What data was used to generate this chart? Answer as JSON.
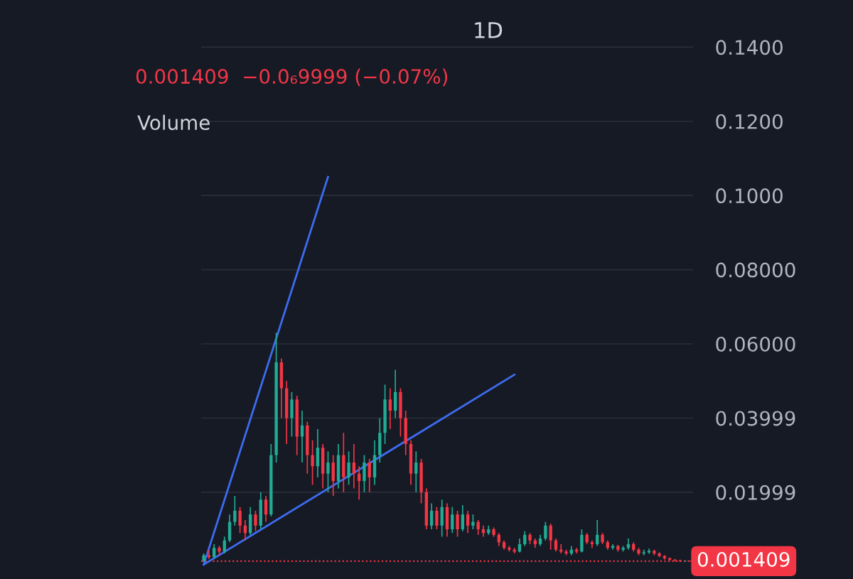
{
  "chart_data": {
    "type": "candlestick",
    "title": "1D",
    "annotations": [
      "0.001409  −0.0₆9999 (−0.07%)",
      "Volume"
    ],
    "categories": [
      null,
      null,
      null,
      null,
      null,
      null,
      null,
      null,
      null,
      null,
      null,
      null,
      null,
      null,
      null,
      null,
      null,
      null,
      null,
      null,
      null,
      null,
      null,
      null,
      null,
      null,
      null,
      null,
      null,
      null,
      null,
      null,
      null,
      null,
      null,
      null,
      null,
      null,
      null,
      null,
      null,
      null,
      null,
      null,
      null,
      null,
      null,
      null,
      null,
      null,
      null,
      null,
      null,
      null,
      null,
      null,
      null,
      null,
      null,
      null,
      null,
      null,
      null,
      null,
      null,
      null,
      null,
      null,
      null,
      null,
      null,
      null,
      null,
      null,
      null,
      null,
      null,
      null,
      null,
      null,
      null,
      null,
      null,
      null,
      null,
      null,
      null,
      null,
      null,
      null,
      null,
      null,
      null,
      null,
      null
    ],
    "series": [
      {
        "colors": [
          "#22ab94",
          "#f23645",
          "#22ab94",
          "#f23645",
          "#22ab94",
          "#22ab94",
          "#22ab94",
          "#f23645",
          "#f23645",
          "#22ab94",
          "#f23645",
          "#22ab94",
          "#f23645",
          "#22ab94",
          "#22ab94",
          "#f23645",
          "#f23645",
          "#22ab94",
          "#f23645",
          "#22ab94",
          "#f23645",
          "#f23645",
          "#22ab94",
          "#f23645",
          "#22ab94",
          "#f23645",
          "#22ab94",
          "#f23645",
          "#22ab94",
          "#f23645",
          "#f23645",
          "#22ab94",
          "#f23645",
          "#22ab94",
          "#22ab94",
          "#22ab94",
          "#f23645",
          "#22ab94",
          "#f23645",
          "#f23645",
          "#f23645",
          "#22ab94",
          "#f23645",
          "#f23645",
          "#22ab94",
          "#f23645",
          "#22ab94",
          "#f23645",
          "#22ab94",
          "#f23645",
          "#22ab94",
          "#f23645",
          "#22ab94",
          "#f23645",
          "#f23645",
          "#22ab94",
          "#f23645",
          "#f23645",
          "#f23645",
          "#f23645",
          "#f23645",
          "#22ab94",
          "#22ab94",
          "#f23645",
          "#f23645",
          "#22ab94",
          "#22ab94",
          "#f23645",
          "#f23645",
          "#f23645",
          "#f23645",
          "#22ab94",
          "#f23645",
          "#22ab94",
          "#f23645",
          "#f23645",
          "#22ab94",
          "#f23645",
          "#f23645",
          "#22ab94",
          "#f23645",
          "#22ab94",
          "#22ab94",
          "#f23645",
          "#f23645",
          "#22ab94",
          "#22ab94",
          "#f23645",
          "#f23645",
          "#f23645",
          "#f23645",
          "#f23645",
          "#f23645",
          "#22ab94",
          "#f23645"
        ],
        "ohlc": [
          [
            0.0015,
            0.0035,
            0.0012,
            0.003
          ],
          [
            0.003,
            0.0045,
            0.002,
            0.0025
          ],
          [
            0.0025,
            0.006,
            0.0022,
            0.005
          ],
          [
            0.005,
            0.0055,
            0.003,
            0.004
          ],
          [
            0.004,
            0.008,
            0.0035,
            0.007
          ],
          [
            0.007,
            0.014,
            0.0065,
            0.012
          ],
          [
            0.012,
            0.019,
            0.011,
            0.015
          ],
          [
            0.015,
            0.016,
            0.009,
            0.011
          ],
          [
            0.011,
            0.0125,
            0.007,
            0.009
          ],
          [
            0.009,
            0.016,
            0.0085,
            0.014
          ],
          [
            0.014,
            0.015,
            0.0095,
            0.011
          ],
          [
            0.011,
            0.02,
            0.01,
            0.018
          ],
          [
            0.018,
            0.019,
            0.012,
            0.014
          ],
          [
            0.014,
            0.033,
            0.0135,
            0.03
          ],
          [
            0.03,
            0.063,
            0.028,
            0.055
          ],
          [
            0.055,
            0.056,
            0.04,
            0.048
          ],
          [
            0.048,
            0.05,
            0.033,
            0.04
          ],
          [
            0.04,
            0.047,
            0.035,
            0.045
          ],
          [
            0.045,
            0.046,
            0.03,
            0.035
          ],
          [
            0.035,
            0.042,
            0.028,
            0.038
          ],
          [
            0.038,
            0.039,
            0.025,
            0.03
          ],
          [
            0.03,
            0.034,
            0.022,
            0.027
          ],
          [
            0.027,
            0.037,
            0.024,
            0.032
          ],
          [
            0.032,
            0.033,
            0.021,
            0.025
          ],
          [
            0.025,
            0.031,
            0.02,
            0.028
          ],
          [
            0.028,
            0.03,
            0.019,
            0.023
          ],
          [
            0.023,
            0.033,
            0.021,
            0.03
          ],
          [
            0.03,
            0.036,
            0.02,
            0.024
          ],
          [
            0.024,
            0.031,
            0.022,
            0.028
          ],
          [
            0.028,
            0.033,
            0.021,
            0.025
          ],
          [
            0.025,
            0.027,
            0.018,
            0.023
          ],
          [
            0.023,
            0.03,
            0.02,
            0.028
          ],
          [
            0.028,
            0.029,
            0.02,
            0.024
          ],
          [
            0.024,
            0.034,
            0.022,
            0.03
          ],
          [
            0.03,
            0.04,
            0.028,
            0.036
          ],
          [
            0.036,
            0.049,
            0.033,
            0.045
          ],
          [
            0.045,
            0.048,
            0.037,
            0.042
          ],
          [
            0.042,
            0.053,
            0.04,
            0.047
          ],
          [
            0.047,
            0.048,
            0.035,
            0.04
          ],
          [
            0.04,
            0.042,
            0.03,
            0.033
          ],
          [
            0.033,
            0.034,
            0.022,
            0.025
          ],
          [
            0.025,
            0.031,
            0.02,
            0.028
          ],
          [
            0.028,
            0.029,
            0.017,
            0.02
          ],
          [
            0.02,
            0.021,
            0.01,
            0.011
          ],
          [
            0.011,
            0.017,
            0.01,
            0.015
          ],
          [
            0.015,
            0.016,
            0.01,
            0.011
          ],
          [
            0.011,
            0.018,
            0.008,
            0.016
          ],
          [
            0.016,
            0.017,
            0.008,
            0.01
          ],
          [
            0.01,
            0.016,
            0.009,
            0.014
          ],
          [
            0.014,
            0.015,
            0.008,
            0.01
          ],
          [
            0.01,
            0.0165,
            0.0095,
            0.014
          ],
          [
            0.014,
            0.015,
            0.009,
            0.011
          ],
          [
            0.011,
            0.014,
            0.01,
            0.012
          ],
          [
            0.012,
            0.0125,
            0.0085,
            0.01
          ],
          [
            0.01,
            0.011,
            0.008,
            0.009
          ],
          [
            0.009,
            0.011,
            0.0085,
            0.01
          ],
          [
            0.01,
            0.0105,
            0.008,
            0.0085
          ],
          [
            0.0085,
            0.009,
            0.0055,
            0.0065
          ],
          [
            0.0065,
            0.007,
            0.0045,
            0.005
          ],
          [
            0.005,
            0.0055,
            0.004,
            0.0045
          ],
          [
            0.0045,
            0.005,
            0.0035,
            0.004
          ],
          [
            0.004,
            0.0075,
            0.0038,
            0.006
          ],
          [
            0.006,
            0.0095,
            0.0055,
            0.0085
          ],
          [
            0.0085,
            0.009,
            0.006,
            0.007
          ],
          [
            0.007,
            0.0075,
            0.005,
            0.006
          ],
          [
            0.006,
            0.0085,
            0.0055,
            0.0075
          ],
          [
            0.0075,
            0.012,
            0.007,
            0.011
          ],
          [
            0.011,
            0.0115,
            0.0045,
            0.007
          ],
          [
            0.007,
            0.0075,
            0.004,
            0.0045
          ],
          [
            0.0045,
            0.006,
            0.0035,
            0.004
          ],
          [
            0.004,
            0.0045,
            0.003,
            0.0035
          ],
          [
            0.0035,
            0.0055,
            0.003,
            0.0045
          ],
          [
            0.0045,
            0.005,
            0.0035,
            0.004
          ],
          [
            0.004,
            0.01,
            0.0038,
            0.0085
          ],
          [
            0.0085,
            0.009,
            0.006,
            0.0065
          ],
          [
            0.0065,
            0.007,
            0.005,
            0.006
          ],
          [
            0.006,
            0.0125,
            0.0055,
            0.0085
          ],
          [
            0.0085,
            0.009,
            0.006,
            0.0065
          ],
          [
            0.0065,
            0.007,
            0.0045,
            0.005
          ],
          [
            0.005,
            0.006,
            0.0045,
            0.0055
          ],
          [
            0.0055,
            0.0058,
            0.004,
            0.0045
          ],
          [
            0.0045,
            0.0055,
            0.004,
            0.005
          ],
          [
            0.005,
            0.0075,
            0.0045,
            0.006
          ],
          [
            0.006,
            0.0065,
            0.004,
            0.0045
          ],
          [
            0.0045,
            0.005,
            0.003,
            0.0035
          ],
          [
            0.0035,
            0.0045,
            0.003,
            0.0038
          ],
          [
            0.0038,
            0.0048,
            0.0034,
            0.0042
          ],
          [
            0.0042,
            0.0045,
            0.003,
            0.0035
          ],
          [
            0.0035,
            0.0038,
            0.0025,
            0.0028
          ],
          [
            0.0028,
            0.003,
            0.0018,
            0.0022
          ],
          [
            0.0022,
            0.0024,
            0.0015,
            0.0018
          ],
          [
            0.0018,
            0.002,
            0.0013,
            0.0016
          ],
          [
            0.0016,
            0.0018,
            0.0012,
            0.0014
          ],
          [
            0.0014,
            0.0016,
            0.0013,
            0.0015
          ],
          [
            0.0015,
            0.0016,
            0.0013,
            0.001409
          ]
        ]
      },
      {
        "type": "line",
        "color": "#3d6cf0",
        "values": [
          0.0005,
          null,
          null,
          null,
          null,
          null,
          null,
          null,
          null,
          null,
          null,
          null,
          null,
          null,
          null,
          null,
          null,
          null,
          null,
          null,
          null,
          null,
          null,
          null,
          0.105,
          null,
          null,
          null,
          null,
          null,
          null,
          null,
          null,
          null,
          null,
          null,
          null,
          null,
          null,
          null,
          null,
          null,
          null,
          null,
          null,
          null,
          null,
          null,
          null,
          null,
          null,
          null,
          null,
          null,
          null,
          null,
          null,
          null,
          null,
          null,
          null,
          null,
          null,
          null,
          null,
          null,
          null,
          null,
          null,
          null,
          null,
          null,
          null,
          null,
          null,
          null,
          null,
          null,
          null,
          null,
          null,
          null,
          null,
          null,
          null,
          null,
          null,
          null,
          null,
          null,
          null,
          null,
          null,
          null,
          null
        ]
      },
      {
        "type": "line",
        "color": "#3d6cf0",
        "values": [
          0.0005,
          null,
          null,
          null,
          null,
          null,
          null,
          null,
          null,
          null,
          null,
          null,
          null,
          null,
          null,
          null,
          null,
          null,
          null,
          null,
          null,
          null,
          null,
          null,
          null,
          null,
          null,
          null,
          null,
          null,
          null,
          null,
          null,
          null,
          null,
          null,
          null,
          null,
          null,
          null,
          null,
          null,
          null,
          null,
          null,
          null,
          null,
          null,
          null,
          null,
          null,
          null,
          null,
          null,
          null,
          null,
          null,
          null,
          null,
          null,
          0.0517,
          null,
          null,
          null,
          null,
          null,
          null,
          null,
          null,
          null,
          null,
          null,
          null,
          null,
          null,
          null,
          null,
          null,
          null,
          null,
          null,
          null,
          null,
          null,
          null,
          null,
          null,
          null,
          null,
          null,
          null,
          null,
          null,
          null,
          null
        ]
      }
    ],
    "ylim": [
      -0.0034,
      0.1527
    ],
    "yticks": [
      0.01999,
      0.03999,
      {
        "value": 0.06,
        "label": "0.06000"
      },
      {
        "value": 0.08,
        "label": "0.08000"
      },
      {
        "value": 0.1,
        "label": "0.1000"
      },
      {
        "value": 0.12,
        "label": "0.1200"
      },
      {
        "value": 0.14,
        "label": "0.1400"
      }
    ],
    "ref_lines": [
      {
        "axis": "y",
        "value": 0.001409,
        "label": "0.001409",
        "color": "#f23645",
        "line_style": "dotted"
      }
    ],
    "grid": "y",
    "tick_labels": "y"
  }
}
